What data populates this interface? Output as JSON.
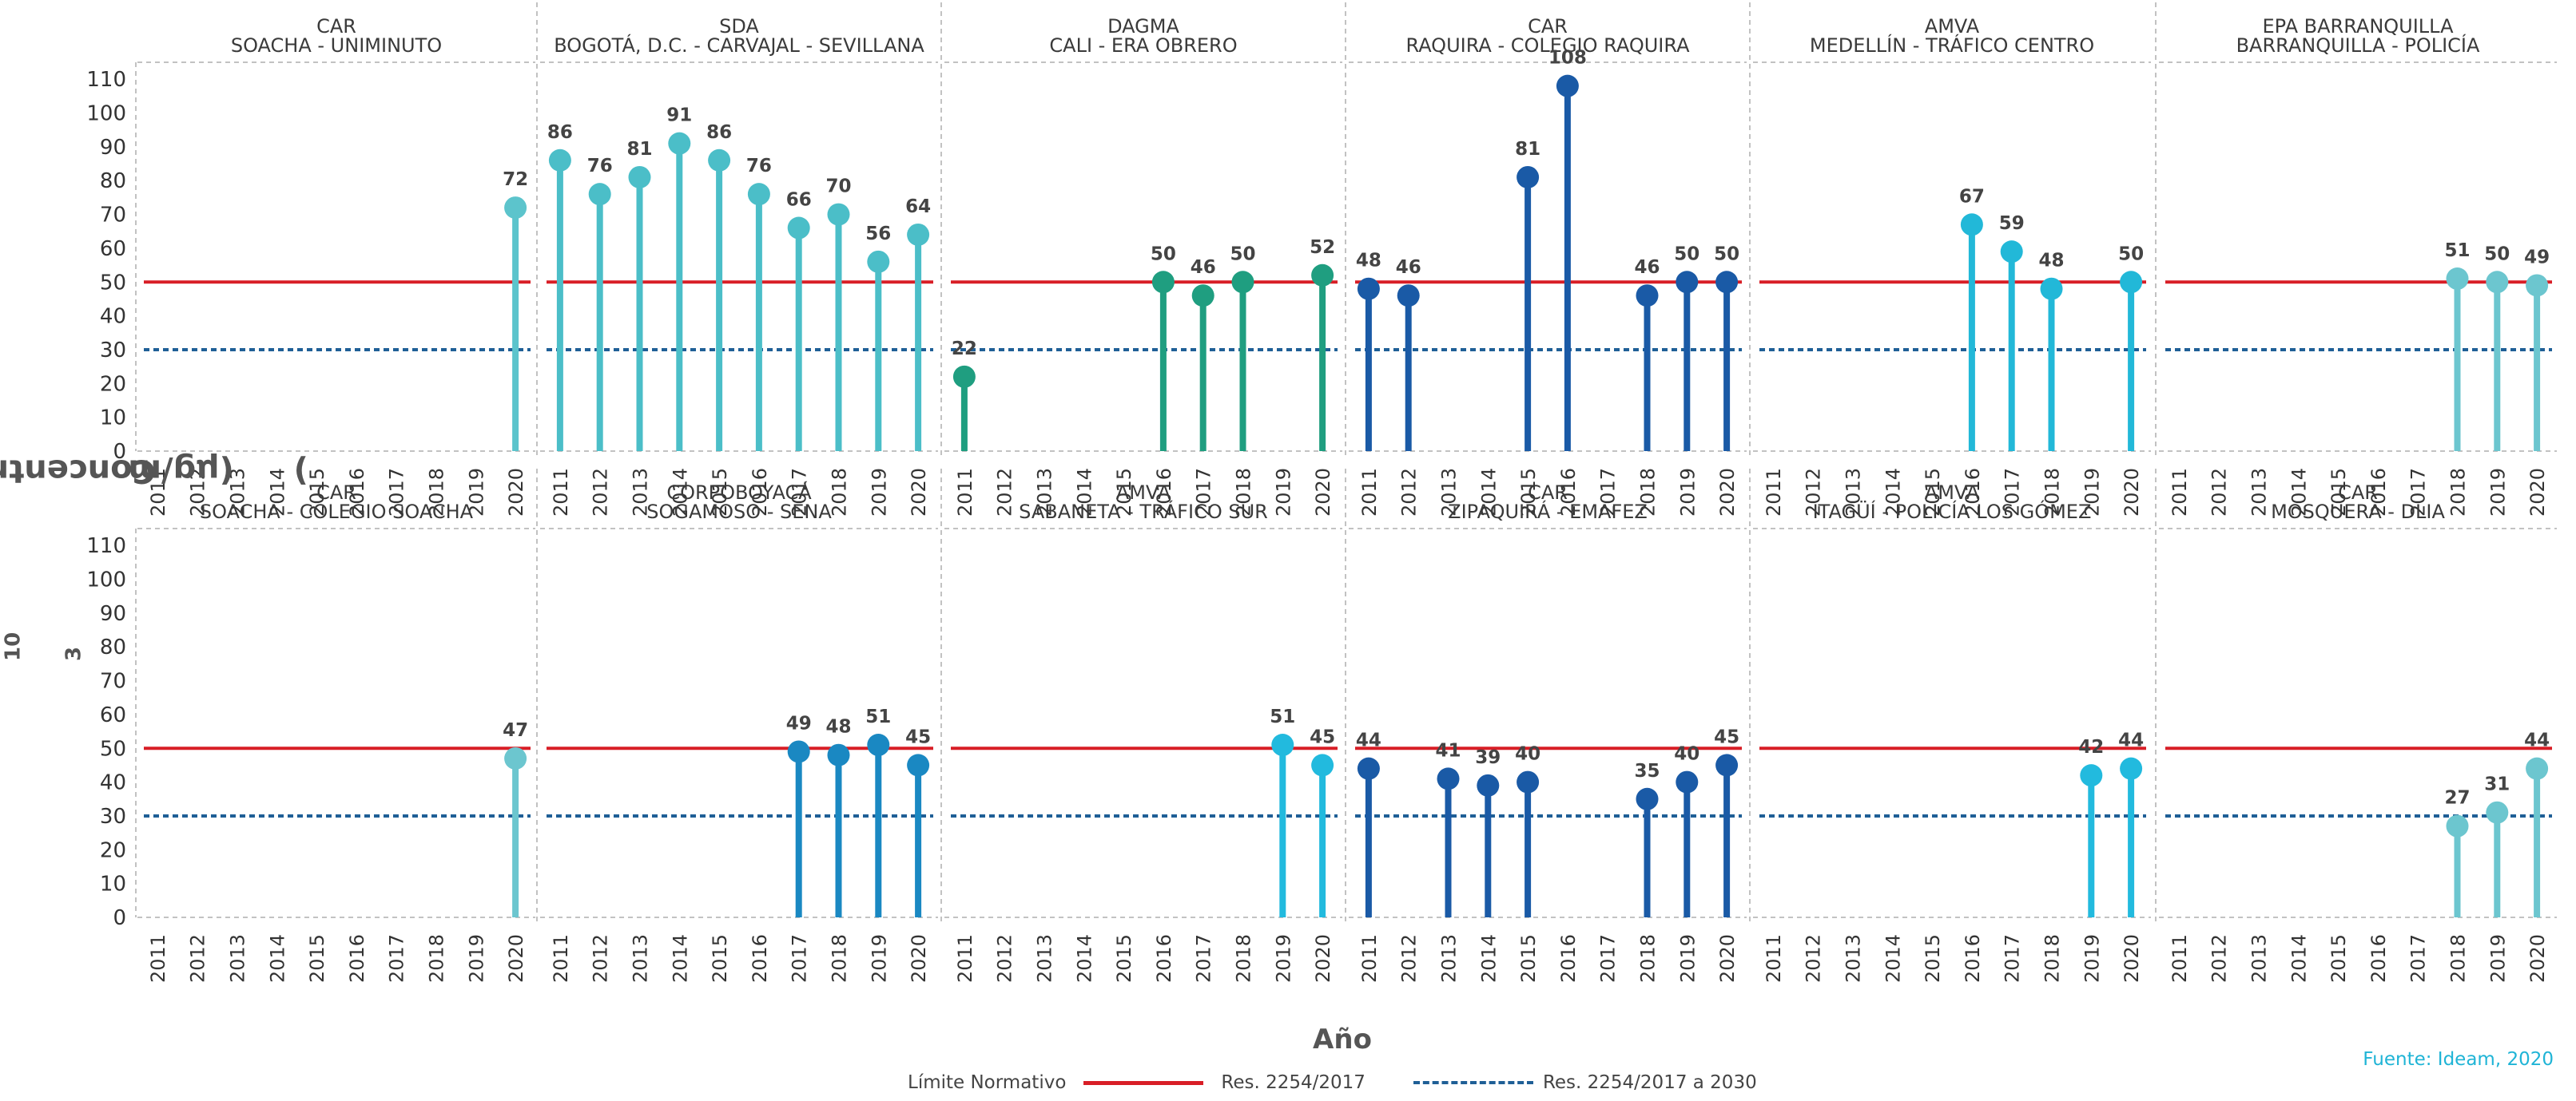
{
  "y_axis_title": {
    "main": "Concentración de PM",
    "sub": "10",
    "units_open": " (µg/m",
    "sup": "3",
    "units_close": ")"
  },
  "x_axis_title": "Año",
  "source": "Fuente: Ideam, 2020",
  "legend": {
    "title": "Límite Normativo",
    "solid_label": "Res. 2254/2017",
    "dashed_label": "Res. 2254/2017 a 2030"
  },
  "colors": {
    "limit_solid": "#d81e26",
    "limit_dashed": "#1f5f96",
    "grid": "#c2c2c2",
    "value_label": "#444444"
  },
  "chart_data": {
    "type": "lollipop",
    "layout": "facet-grid",
    "facet_rows": 2,
    "facet_cols": 6,
    "x_categories": [
      "2011",
      "2012",
      "2013",
      "2014",
      "2015",
      "2016",
      "2017",
      "2018",
      "2019",
      "2020"
    ],
    "y_ticks": [
      0,
      10,
      20,
      30,
      40,
      50,
      60,
      70,
      80,
      90,
      100,
      110
    ],
    "ylim": [
      0,
      115
    ],
    "reference_lines": [
      {
        "name": "Res. 2254/2017",
        "value": 50,
        "style": "solid",
        "color": "#d81e26"
      },
      {
        "name": "Res. 2254/2017 a 2030",
        "value": 30,
        "style": "dashed",
        "color": "#1f5f96"
      }
    ],
    "panels": [
      {
        "authority": "CAR",
        "station": "SOACHA - UNIMINUTO",
        "color": "#5cc4cc",
        "points": [
          {
            "x": "2020",
            "y": 72
          }
        ]
      },
      {
        "authority": "SDA",
        "station": "BOGOTÁ, D.C. - CARVAJAL - SEVILLANA",
        "color": "#4bbec8",
        "points": [
          {
            "x": "2011",
            "y": 86
          },
          {
            "x": "2012",
            "y": 76
          },
          {
            "x": "2013",
            "y": 81
          },
          {
            "x": "2014",
            "y": 91
          },
          {
            "x": "2015",
            "y": 86
          },
          {
            "x": "2016",
            "y": 76
          },
          {
            "x": "2017",
            "y": 66
          },
          {
            "x": "2018",
            "y": 70
          },
          {
            "x": "2019",
            "y": 56
          },
          {
            "x": "2020",
            "y": 64
          }
        ]
      },
      {
        "authority": "DAGMA",
        "station": "CALI - ERA OBRERO",
        "color": "#1f9e80",
        "points": [
          {
            "x": "2011",
            "y": 22
          },
          {
            "x": "2016",
            "y": 50
          },
          {
            "x": "2017",
            "y": 46
          },
          {
            "x": "2018",
            "y": 50
          },
          {
            "x": "2020",
            "y": 52
          }
        ]
      },
      {
        "authority": "CAR",
        "station": "RAQUIRA - COLEGIO RAQUIRA",
        "color": "#1a5aa6",
        "points": [
          {
            "x": "2011",
            "y": 48
          },
          {
            "x": "2012",
            "y": 46
          },
          {
            "x": "2015",
            "y": 81
          },
          {
            "x": "2016",
            "y": 108
          },
          {
            "x": "2018",
            "y": 46
          },
          {
            "x": "2019",
            "y": 50
          },
          {
            "x": "2020",
            "y": 50
          }
        ]
      },
      {
        "authority": "AMVA",
        "station": "MEDELLÍN - TRÁFICO CENTRO",
        "color": "#22b8d8",
        "points": [
          {
            "x": "2016",
            "y": 67
          },
          {
            "x": "2017",
            "y": 59
          },
          {
            "x": "2018",
            "y": 48
          },
          {
            "x": "2020",
            "y": 50
          }
        ]
      },
      {
        "authority": "EPA BARRANQUILLA",
        "station": "BARRANQUILLA - POLICÍA",
        "color": "#6cc6cf",
        "points": [
          {
            "x": "2018",
            "y": 51
          },
          {
            "x": "2019",
            "y": 50
          },
          {
            "x": "2020",
            "y": 49
          }
        ]
      },
      {
        "authority": "CAR",
        "station": "SOACHA - COLEGIO SOACHA",
        "color": "#6cc6cf",
        "points": [
          {
            "x": "2020",
            "y": 47
          }
        ]
      },
      {
        "authority": "CORPOBOYACÁ",
        "station": "SOGAMOSO - SENA",
        "color": "#1a88c2",
        "points": [
          {
            "x": "2017",
            "y": 49
          },
          {
            "x": "2018",
            "y": 48
          },
          {
            "x": "2019",
            "y": 51
          },
          {
            "x": "2020",
            "y": 45
          }
        ]
      },
      {
        "authority": "AMVA",
        "station": "SABANETA - TRÁFICO SUR",
        "color": "#22bade",
        "points": [
          {
            "x": "2019",
            "y": 51
          },
          {
            "x": "2020",
            "y": 45
          }
        ]
      },
      {
        "authority": "CAR",
        "station": "ZIPAQUIRÁ - EMAFEZ",
        "color": "#1a5aa6",
        "points": [
          {
            "x": "2011",
            "y": 44
          },
          {
            "x": "2013",
            "y": 41
          },
          {
            "x": "2014",
            "y": 39
          },
          {
            "x": "2015",
            "y": 40
          },
          {
            "x": "2018",
            "y": 35
          },
          {
            "x": "2019",
            "y": 40
          },
          {
            "x": "2020",
            "y": 45
          }
        ]
      },
      {
        "authority": "AMVA",
        "station": "ITAGÜÍ - POLICÍA LOS GÓMEZ",
        "color": "#22bade",
        "points": [
          {
            "x": "2019",
            "y": 42
          },
          {
            "x": "2020",
            "y": 44
          }
        ]
      },
      {
        "authority": "CAR",
        "station": "MOSQUERA - DLIA",
        "color": "#6cc6cf",
        "points": [
          {
            "x": "2018",
            "y": 27
          },
          {
            "x": "2019",
            "y": 31
          },
          {
            "x": "2020",
            "y": 44
          }
        ]
      }
    ]
  }
}
